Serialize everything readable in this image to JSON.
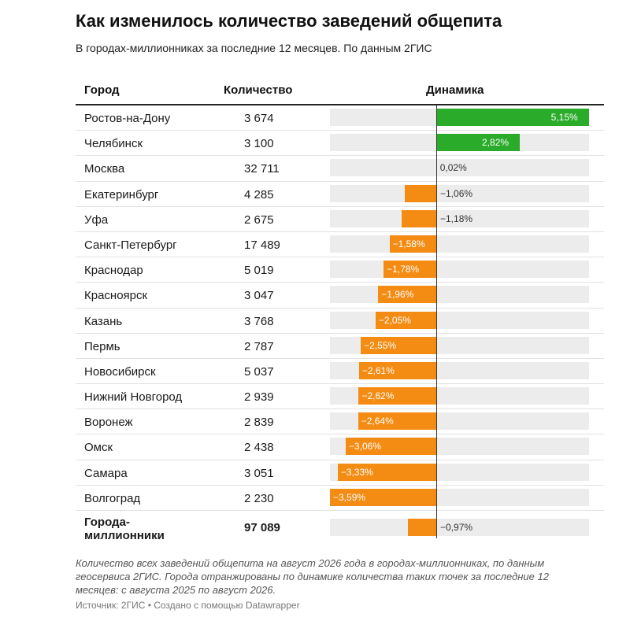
{
  "title": "Как изменилось количество заведений общепита",
  "subtitle": "В городах-миллионниках за последние 12 месяцев. По данным 2ГИС",
  "columns": {
    "city": "Город",
    "count": "Количество",
    "dynamics": "Динамика"
  },
  "note": "Количество всех заведений общепита на август 2026 года в городах-миллионниках, по данным геосервиса 2ГИС. Города отранжированы по динамике количества таких точек за последние 12 месяцев: с августа 2025 по август 2026.",
  "source": "Источник: 2ГИС • Создано с помощью Datawrapper",
  "colors": {
    "positive": "#2aab2a",
    "negative": "#f48c14",
    "track": "#ececec"
  },
  "chart_data": {
    "type": "table",
    "value_unit": "%",
    "x_range": [
      -3.59,
      5.15
    ],
    "rows": [
      {
        "city": "Ростов-на-Дону",
        "count": "3 674",
        "dynamics": 5.15,
        "label": "5,15%"
      },
      {
        "city": "Челябинск",
        "count": "3 100",
        "dynamics": 2.82,
        "label": "2,82%"
      },
      {
        "city": "Москва",
        "count": "32 711",
        "dynamics": 0.02,
        "label": "0,02%"
      },
      {
        "city": "Екатеринбург",
        "count": "4 285",
        "dynamics": -1.06,
        "label": "−1,06%"
      },
      {
        "city": "Уфа",
        "count": "2 675",
        "dynamics": -1.18,
        "label": "−1,18%"
      },
      {
        "city": "Санкт-Петербург",
        "count": "17 489",
        "dynamics": -1.58,
        "label": "−1,58%"
      },
      {
        "city": "Краснодар",
        "count": "5 019",
        "dynamics": -1.78,
        "label": "−1,78%"
      },
      {
        "city": "Красноярск",
        "count": "3 047",
        "dynamics": -1.96,
        "label": "−1,96%"
      },
      {
        "city": "Казань",
        "count": "3 768",
        "dynamics": -2.05,
        "label": "−2,05%"
      },
      {
        "city": "Пермь",
        "count": "2 787",
        "dynamics": -2.55,
        "label": "−2,55%"
      },
      {
        "city": "Новосибирск",
        "count": "5 037",
        "dynamics": -2.61,
        "label": "−2,61%"
      },
      {
        "city": "Нижний Новгород",
        "count": "2 939",
        "dynamics": -2.62,
        "label": "−2,62%"
      },
      {
        "city": "Воронеж",
        "count": "2 839",
        "dynamics": -2.64,
        "label": "−2,64%"
      },
      {
        "city": "Омск",
        "count": "2 438",
        "dynamics": -3.06,
        "label": "−3,06%"
      },
      {
        "city": "Самара",
        "count": "3 051",
        "dynamics": -3.33,
        "label": "−3,33%"
      },
      {
        "city": "Волгоград",
        "count": "2 230",
        "dynamics": -3.59,
        "label": "−3,59%"
      },
      {
        "city": "Города-миллионники",
        "count": "97 089",
        "dynamics": -0.97,
        "label": "−0,97%",
        "total": true
      }
    ]
  }
}
